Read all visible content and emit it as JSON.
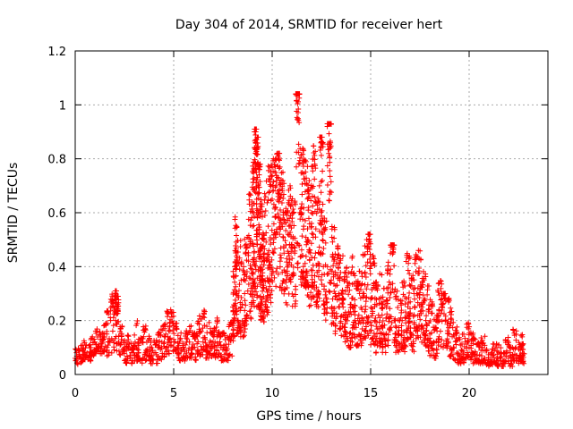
{
  "chart_data": {
    "type": "scatter",
    "title": "Day 304 of 2014, SRMTID for receiver hert",
    "xlabel": "GPS time / hours",
    "ylabel": "SRMTID / TECUs",
    "xlim": [
      0,
      24
    ],
    "ylim": [
      0,
      1.2
    ],
    "x_ticks": [
      0,
      5,
      10,
      15,
      20
    ],
    "y_ticks": [
      0,
      0.2,
      0.4,
      0.6,
      0.8,
      1,
      1.2
    ],
    "x_tick_labels": [
      "0",
      "5",
      "10",
      "15",
      "20"
    ],
    "y_tick_labels": [
      "0",
      "0.2",
      "0.4",
      "0.6",
      "0.8",
      "1",
      "1.2"
    ],
    "grid": true,
    "marker": "+",
    "color": "#ff0000",
    "series": [
      {
        "name": "SRMTID",
        "x": [
          0.0,
          0.2,
          0.4,
          0.6,
          0.8,
          1.0,
          1.2,
          1.4,
          1.6,
          1.8,
          2.0,
          2.1,
          2.2,
          2.4,
          2.6,
          2.8,
          3.0,
          3.2,
          3.4,
          3.6,
          3.8,
          4.0,
          4.2,
          4.4,
          4.6,
          4.8,
          5.0,
          5.2,
          5.4,
          5.6,
          5.8,
          6.0,
          6.2,
          6.4,
          6.6,
          6.8,
          7.0,
          7.2,
          7.4,
          7.6,
          7.8,
          8.0,
          8.1,
          8.2,
          8.4,
          8.6,
          8.8,
          9.0,
          9.1,
          9.2,
          9.3,
          9.4,
          9.5,
          9.6,
          9.8,
          10.0,
          10.2,
          10.4,
          10.6,
          10.8,
          11.0,
          11.2,
          11.4,
          11.6,
          11.8,
          12.0,
          12.2,
          12.4,
          12.6,
          12.8,
          13.0,
          13.2,
          13.4,
          13.6,
          13.8,
          14.0,
          14.2,
          14.4,
          14.6,
          14.8,
          15.0,
          15.2,
          15.4,
          15.6,
          15.8,
          16.0,
          16.2,
          16.4,
          16.6,
          16.8,
          17.0,
          17.2,
          17.4,
          17.6,
          17.8,
          18.0,
          18.2,
          18.4,
          18.6,
          18.8,
          19.0,
          19.2,
          19.4,
          19.6,
          19.8,
          20.0,
          20.2,
          20.4,
          20.6,
          20.8,
          21.0,
          21.2,
          21.4,
          21.6,
          21.8,
          22.0,
          22.2,
          22.4,
          22.6,
          22.7
        ],
        "y": [
          0.06,
          0.07,
          0.09,
          0.08,
          0.1,
          0.12,
          0.11,
          0.14,
          0.15,
          0.2,
          0.28,
          0.25,
          0.12,
          0.08,
          0.09,
          0.07,
          0.1,
          0.08,
          0.12,
          0.09,
          0.07,
          0.08,
          0.1,
          0.12,
          0.15,
          0.18,
          0.13,
          0.1,
          0.09,
          0.11,
          0.12,
          0.1,
          0.14,
          0.16,
          0.13,
          0.11,
          0.12,
          0.14,
          0.1,
          0.09,
          0.13,
          0.25,
          0.4,
          0.3,
          0.25,
          0.3,
          0.42,
          0.55,
          0.9,
          0.75,
          0.6,
          0.4,
          0.35,
          0.45,
          0.55,
          0.65,
          0.7,
          0.58,
          0.45,
          0.52,
          0.48,
          1.04,
          0.6,
          0.55,
          0.5,
          0.6,
          0.45,
          0.7,
          0.4,
          0.92,
          0.35,
          0.3,
          0.28,
          0.25,
          0.22,
          0.26,
          0.2,
          0.22,
          0.3,
          0.5,
          0.28,
          0.2,
          0.22,
          0.18,
          0.25,
          0.45,
          0.2,
          0.15,
          0.2,
          0.28,
          0.22,
          0.3,
          0.32,
          0.25,
          0.2,
          0.15,
          0.12,
          0.22,
          0.28,
          0.2,
          0.15,
          0.1,
          0.08,
          0.09,
          0.12,
          0.1,
          0.08,
          0.07,
          0.09,
          0.06,
          0.05,
          0.07,
          0.06,
          0.05,
          0.08,
          0.06,
          0.1,
          0.07,
          0.09,
          0.08
        ],
        "min": [
          0.03,
          0.04,
          0.05,
          0.05,
          0.06,
          0.07,
          0.06,
          0.07,
          0.06,
          0.08,
          0.1,
          0.08,
          0.05,
          0.04,
          0.04,
          0.04,
          0.05,
          0.04,
          0.05,
          0.05,
          0.04,
          0.04,
          0.05,
          0.06,
          0.07,
          0.08,
          0.07,
          0.05,
          0.05,
          0.06,
          0.06,
          0.05,
          0.06,
          0.07,
          0.06,
          0.06,
          0.06,
          0.06,
          0.05,
          0.05,
          0.06,
          0.12,
          0.2,
          0.15,
          0.14,
          0.15,
          0.2,
          0.25,
          0.3,
          0.25,
          0.22,
          0.2,
          0.18,
          0.22,
          0.25,
          0.3,
          0.32,
          0.3,
          0.25,
          0.28,
          0.25,
          0.35,
          0.3,
          0.28,
          0.25,
          0.28,
          0.22,
          0.3,
          0.2,
          0.3,
          0.18,
          0.15,
          0.14,
          0.12,
          0.1,
          0.12,
          0.1,
          0.1,
          0.12,
          0.14,
          0.1,
          0.08,
          0.1,
          0.08,
          0.1,
          0.15,
          0.08,
          0.07,
          0.08,
          0.1,
          0.08,
          0.12,
          0.12,
          0.1,
          0.08,
          0.07,
          0.06,
          0.08,
          0.1,
          0.08,
          0.06,
          0.05,
          0.04,
          0.04,
          0.05,
          0.05,
          0.04,
          0.04,
          0.04,
          0.03,
          0.03,
          0.04,
          0.03,
          0.03,
          0.04,
          0.03,
          0.05,
          0.04,
          0.04,
          0.04
        ],
        "max": [
          0.1,
          0.11,
          0.13,
          0.12,
          0.14,
          0.17,
          0.16,
          0.2,
          0.24,
          0.3,
          0.31,
          0.29,
          0.18,
          0.13,
          0.15,
          0.12,
          0.2,
          0.14,
          0.18,
          0.15,
          0.12,
          0.13,
          0.17,
          0.19,
          0.24,
          0.25,
          0.2,
          0.16,
          0.15,
          0.17,
          0.19,
          0.16,
          0.22,
          0.24,
          0.2,
          0.17,
          0.18,
          0.22,
          0.16,
          0.14,
          0.2,
          0.4,
          0.59,
          0.5,
          0.42,
          0.52,
          0.7,
          0.8,
          0.91,
          0.88,
          0.78,
          0.65,
          0.55,
          0.72,
          0.78,
          0.8,
          0.82,
          0.75,
          0.62,
          0.7,
          0.66,
          1.04,
          0.85,
          0.8,
          0.72,
          0.85,
          0.66,
          0.88,
          0.6,
          0.93,
          0.55,
          0.48,
          0.45,
          0.42,
          0.38,
          0.44,
          0.35,
          0.4,
          0.48,
          0.52,
          0.45,
          0.35,
          0.38,
          0.32,
          0.42,
          0.48,
          0.35,
          0.28,
          0.35,
          0.45,
          0.38,
          0.46,
          0.46,
          0.4,
          0.35,
          0.28,
          0.22,
          0.35,
          0.3,
          0.3,
          0.25,
          0.18,
          0.14,
          0.15,
          0.2,
          0.18,
          0.14,
          0.12,
          0.15,
          0.11,
          0.1,
          0.12,
          0.11,
          0.1,
          0.14,
          0.11,
          0.17,
          0.12,
          0.15,
          0.12
        ]
      }
    ]
  }
}
